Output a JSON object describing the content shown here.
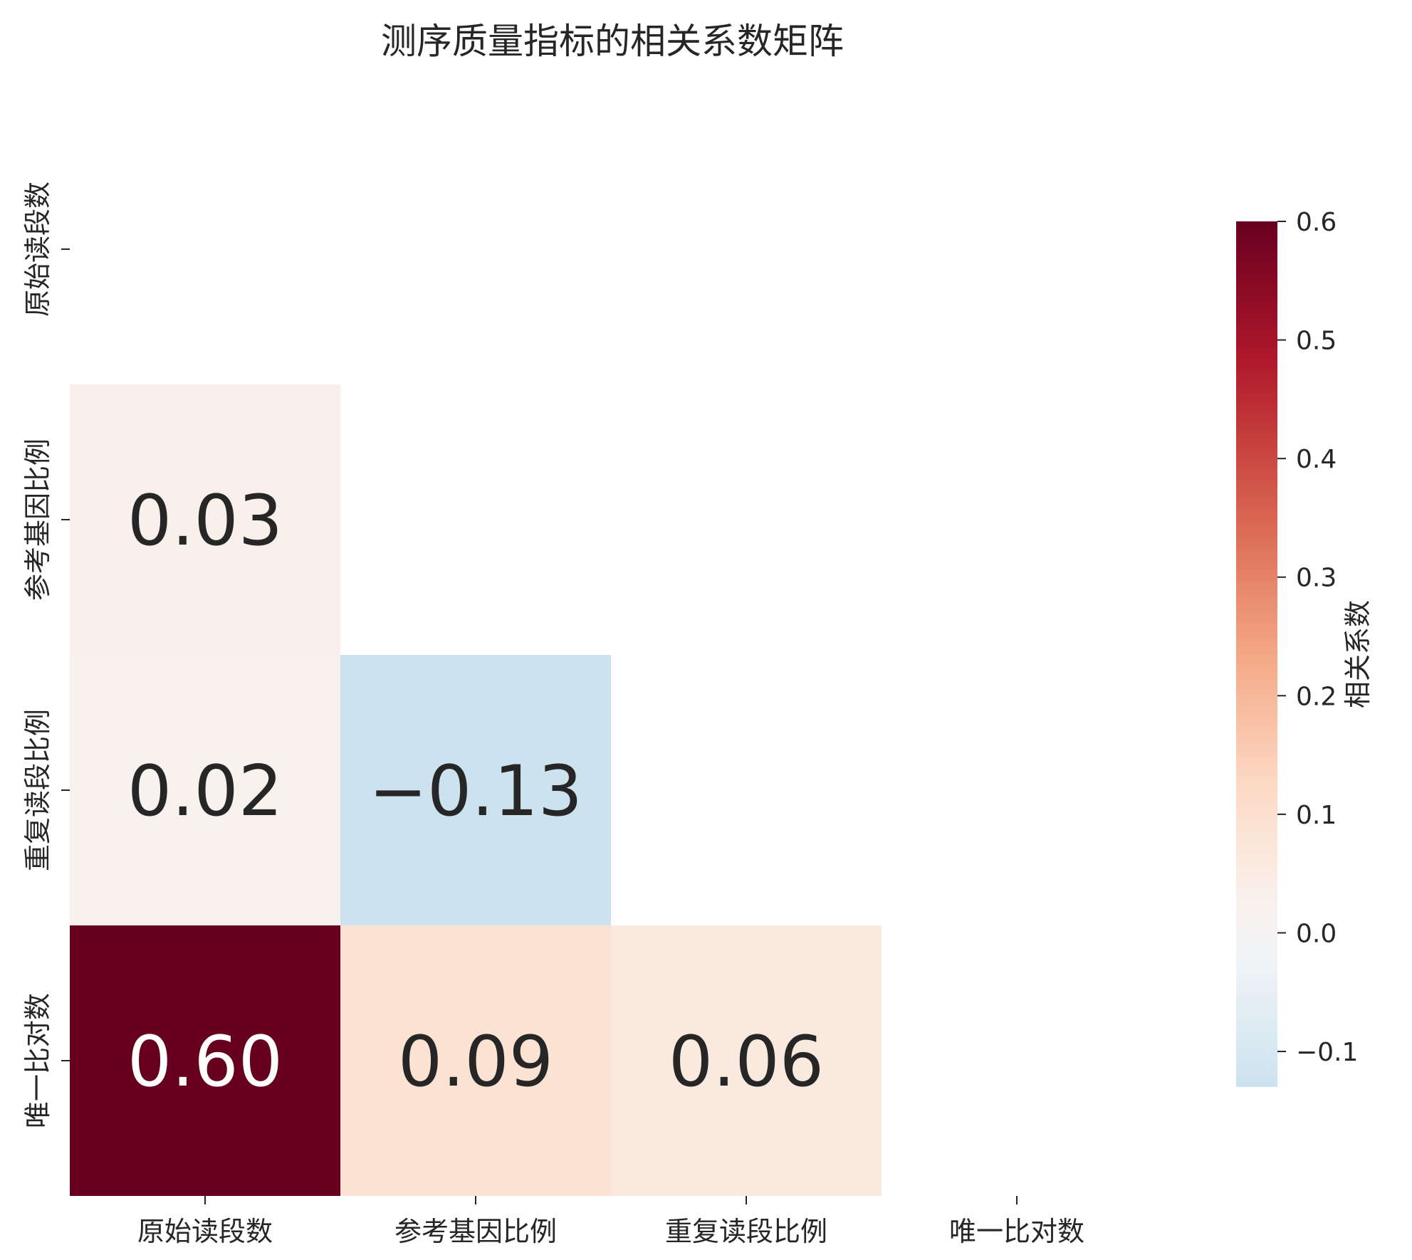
{
  "chart_data": {
    "type": "heatmap",
    "title": "测序质量指标的相关系数矩阵",
    "variables": [
      "原始读段数",
      "参考基因比例",
      "重复读段比例",
      "唯一比对数"
    ],
    "x_tick_labels": [
      "原始读段数",
      "参考基因比例",
      "重复读段比例",
      "唯一比对数"
    ],
    "y_tick_labels": [
      "原始读段数",
      "参考基因比例",
      "重复读段比例",
      "唯一比对数"
    ],
    "mask": "upper-triangle-including-diagonal",
    "cells": [
      {
        "row": 1,
        "col": 0,
        "value": 0.03,
        "label": "0.03"
      },
      {
        "row": 2,
        "col": 0,
        "value": 0.02,
        "label": "0.02"
      },
      {
        "row": 2,
        "col": 1,
        "value": -0.13,
        "label": "−0.13"
      },
      {
        "row": 3,
        "col": 0,
        "value": 0.6,
        "label": "0.60"
      },
      {
        "row": 3,
        "col": 1,
        "value": 0.09,
        "label": "0.09"
      },
      {
        "row": 3,
        "col": 2,
        "value": 0.06,
        "label": "0.06"
      }
    ],
    "colormap": "RdBu_r",
    "colorbar": {
      "label": "相关系数",
      "range": [
        -0.13,
        0.6
      ],
      "ticks": [
        -0.1,
        0.0,
        0.1,
        0.2,
        0.3,
        0.4,
        0.5,
        0.6
      ],
      "tick_labels": [
        "−0.1",
        "0.0",
        "0.1",
        "0.2",
        "0.3",
        "0.4",
        "0.5",
        "0.6"
      ]
    },
    "colors": {
      "text_dark": "#262626",
      "text_light": "#ffffff",
      "max_color": "#67001f",
      "min_color": "#d1e5f0"
    }
  }
}
